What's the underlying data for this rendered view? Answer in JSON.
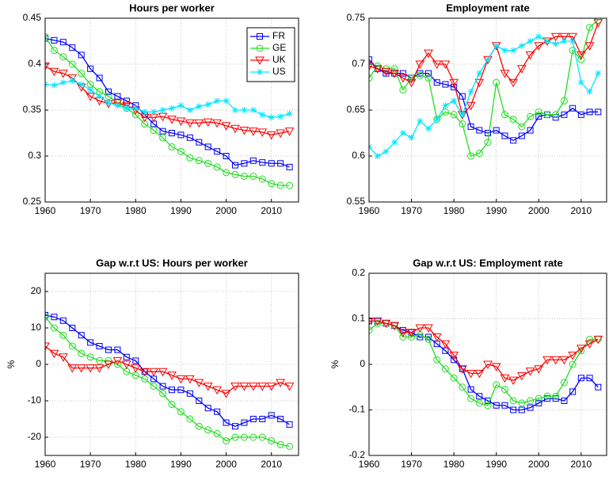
{
  "chart_data": [
    {
      "type": "line",
      "title": "Hours per worker",
      "legend": "upper right",
      "grid": true,
      "x": [
        1960,
        1962,
        1964,
        1966,
        1968,
        1970,
        1972,
        1974,
        1976,
        1978,
        1980,
        1982,
        1984,
        1986,
        1988,
        1990,
        1992,
        1994,
        1996,
        1998,
        2000,
        2002,
        2004,
        2006,
        2008,
        2010,
        2012,
        2014
      ],
      "xlim": [
        1960,
        2016
      ],
      "xticks": [
        1960,
        1970,
        1980,
        1990,
        2000,
        2010
      ],
      "ylim": [
        0.25,
        0.45
      ],
      "yticks": [
        0.25,
        0.3,
        0.35,
        0.4,
        0.45
      ],
      "series": [
        {
          "name": "FR",
          "color": "#0000ff",
          "marker": "square",
          "values": [
            0.428,
            0.426,
            0.424,
            0.418,
            0.41,
            0.395,
            0.385,
            0.37,
            0.365,
            0.36,
            0.355,
            0.345,
            0.335,
            0.327,
            0.325,
            0.323,
            0.32,
            0.315,
            0.31,
            0.305,
            0.3,
            0.29,
            0.292,
            0.295,
            0.293,
            0.292,
            0.292,
            0.288
          ]
        },
        {
          "name": "GE",
          "color": "#22dd22",
          "marker": "circle",
          "values": [
            0.43,
            0.415,
            0.408,
            0.4,
            0.39,
            0.378,
            0.37,
            0.365,
            0.358,
            0.352,
            0.345,
            0.335,
            0.328,
            0.32,
            0.31,
            0.305,
            0.298,
            0.295,
            0.292,
            0.288,
            0.282,
            0.28,
            0.278,
            0.278,
            0.275,
            0.27,
            0.268,
            0.268
          ]
        },
        {
          "name": "UK",
          "color": "#ff0000",
          "marker": "triangle-down",
          "values": [
            0.398,
            0.392,
            0.39,
            0.385,
            0.375,
            0.365,
            0.36,
            0.357,
            0.358,
            0.355,
            0.35,
            0.342,
            0.342,
            0.343,
            0.34,
            0.338,
            0.336,
            0.336,
            0.337,
            0.336,
            0.333,
            0.33,
            0.328,
            0.327,
            0.326,
            0.323,
            0.325,
            0.327
          ]
        },
        {
          "name": "US",
          "color": "#00e5ff",
          "marker": "asterisk",
          "values": [
            0.378,
            0.377,
            0.38,
            0.382,
            0.378,
            0.372,
            0.365,
            0.358,
            0.355,
            0.352,
            0.352,
            0.348,
            0.348,
            0.35,
            0.352,
            0.355,
            0.35,
            0.354,
            0.356,
            0.36,
            0.36,
            0.35,
            0.35,
            0.35,
            0.345,
            0.342,
            0.343,
            0.346
          ]
        }
      ]
    },
    {
      "type": "line",
      "title": "Employment rate",
      "grid": true,
      "x": [
        1960,
        1962,
        1964,
        1966,
        1968,
        1970,
        1972,
        1974,
        1976,
        1978,
        1980,
        1982,
        1984,
        1986,
        1988,
        1990,
        1992,
        1994,
        1996,
        1998,
        2000,
        2002,
        2004,
        2006,
        2008,
        2010,
        2012,
        2014
      ],
      "xlim": [
        1960,
        2016
      ],
      "xticks": [
        1960,
        1970,
        1980,
        1990,
        2000,
        2010
      ],
      "ylim": [
        0.55,
        0.75
      ],
      "yticks": [
        0.55,
        0.6,
        0.65,
        0.7,
        0.75
      ],
      "series": [
        {
          "color": "#0000ff",
          "marker": "square",
          "values": [
            0.705,
            0.695,
            0.69,
            0.69,
            0.69,
            0.685,
            0.69,
            0.69,
            0.68,
            0.678,
            0.675,
            0.665,
            0.632,
            0.628,
            0.625,
            0.628,
            0.622,
            0.617,
            0.622,
            0.628,
            0.643,
            0.645,
            0.642,
            0.645,
            0.652,
            0.645,
            0.648,
            0.648
          ]
        },
        {
          "color": "#22dd22",
          "marker": "circle",
          "values": [
            0.685,
            0.698,
            0.695,
            0.695,
            0.672,
            0.685,
            0.688,
            0.685,
            0.64,
            0.648,
            0.645,
            0.635,
            0.6,
            0.603,
            0.615,
            0.68,
            0.645,
            0.64,
            0.632,
            0.643,
            0.648,
            0.645,
            0.645,
            0.66,
            0.715,
            0.705,
            0.74,
            0.748
          ]
        },
        {
          "color": "#ff0000",
          "marker": "triangle-down",
          "values": [
            0.698,
            0.695,
            0.692,
            0.69,
            0.685,
            0.68,
            0.7,
            0.712,
            0.7,
            0.7,
            0.68,
            0.645,
            0.655,
            0.68,
            0.705,
            0.72,
            0.69,
            0.68,
            0.695,
            0.71,
            0.72,
            0.725,
            0.73,
            0.73,
            0.73,
            0.71,
            0.72,
            0.745
          ]
        },
        {
          "color": "#00e5ff",
          "marker": "asterisk",
          "values": [
            0.61,
            0.6,
            0.605,
            0.615,
            0.625,
            0.62,
            0.638,
            0.63,
            0.64,
            0.655,
            0.66,
            0.645,
            0.67,
            0.69,
            0.705,
            0.72,
            0.715,
            0.715,
            0.72,
            0.725,
            0.73,
            0.725,
            0.722,
            0.725,
            0.725,
            0.68,
            0.67,
            0.69
          ]
        }
      ]
    },
    {
      "type": "line",
      "title": "Gap w.r.t US: Hours per worker",
      "y_label": "%",
      "grid": true,
      "x": [
        1960,
        1962,
        1964,
        1966,
        1968,
        1970,
        1972,
        1974,
        1976,
        1978,
        1980,
        1982,
        1984,
        1986,
        1988,
        1990,
        1992,
        1994,
        1996,
        1998,
        2000,
        2002,
        2004,
        2006,
        2008,
        2010,
        2012,
        2014
      ],
      "xlim": [
        1960,
        2016
      ],
      "xticks": [
        1960,
        1970,
        1980,
        1990,
        2000,
        2010
      ],
      "ylim": [
        -25,
        25
      ],
      "yticks": [
        -20,
        -10,
        0,
        10,
        20
      ],
      "series": [
        {
          "color": "#0000ff",
          "marker": "square",
          "values": [
            13.5,
            13,
            12,
            10,
            8,
            6,
            5,
            4,
            4,
            2,
            1,
            -2,
            -4,
            -6,
            -7,
            -7,
            -8,
            -10,
            -12,
            -13,
            -16,
            -17,
            -16,
            -15,
            -15,
            -14,
            -15,
            -16.5
          ]
        },
        {
          "color": "#22dd22",
          "marker": "circle",
          "values": [
            13,
            10,
            8,
            5,
            3,
            2,
            1,
            1,
            0,
            -2,
            -3,
            -4,
            -6,
            -8,
            -11,
            -13,
            -15,
            -17,
            -18,
            -19,
            -21,
            -20,
            -20,
            -20,
            -20,
            -21,
            -22,
            -22.5
          ]
        },
        {
          "color": "#ff0000",
          "marker": "triangle-down",
          "values": [
            5,
            3,
            2,
            -1,
            -1,
            -1,
            -1,
            0,
            1,
            0,
            -1,
            -2,
            -2,
            -2,
            -3,
            -4,
            -4,
            -5,
            -6,
            -7,
            -8,
            -6,
            -6,
            -6,
            -6,
            -6,
            -5,
            -6
          ]
        }
      ]
    },
    {
      "type": "line",
      "title": "Gap w.r.t US: Employment rate",
      "y_label": "%",
      "grid": true,
      "x": [
        1960,
        1962,
        1964,
        1966,
        1968,
        1970,
        1972,
        1974,
        1976,
        1978,
        1980,
        1982,
        1984,
        1986,
        1988,
        1990,
        1992,
        1994,
        1996,
        1998,
        2000,
        2002,
        2004,
        2006,
        2008,
        2010,
        2012,
        2014
      ],
      "xlim": [
        1960,
        2016
      ],
      "xticks": [
        1960,
        1970,
        1980,
        1990,
        2000,
        2010
      ],
      "ylim": [
        -0.2,
        0.2
      ],
      "yticks": [
        -0.2,
        -0.1,
        0,
        0.1,
        0.2
      ],
      "series": [
        {
          "color": "#0000ff",
          "marker": "square",
          "values": [
            0.095,
            0.095,
            0.09,
            0.085,
            0.075,
            0.07,
            0.06,
            0.06,
            0.045,
            0.03,
            0.01,
            -0.01,
            -0.055,
            -0.07,
            -0.08,
            -0.09,
            -0.09,
            -0.1,
            -0.1,
            -0.095,
            -0.085,
            -0.075,
            -0.075,
            -0.08,
            -0.06,
            -0.03,
            -0.03,
            -0.05
          ]
        },
        {
          "color": "#22dd22",
          "marker": "circle",
          "values": [
            0.075,
            0.09,
            0.09,
            0.085,
            0.06,
            0.06,
            0.065,
            0.055,
            0.01,
            -0.01,
            -0.03,
            -0.05,
            -0.075,
            -0.085,
            -0.09,
            -0.045,
            -0.055,
            -0.08,
            -0.085,
            -0.08,
            -0.075,
            -0.07,
            -0.07,
            -0.04,
            0,
            0.03,
            0.055,
            0.055
          ]
        },
        {
          "color": "#ff0000",
          "marker": "triangle-down",
          "values": [
            0.095,
            0.095,
            0.09,
            0.085,
            0.07,
            0.07,
            0.08,
            0.08,
            0.06,
            0.045,
            0.02,
            -0.01,
            -0.02,
            -0.02,
            0,
            -0.005,
            -0.03,
            -0.035,
            -0.025,
            -0.015,
            -0.01,
            0.01,
            0.01,
            0.01,
            0.02,
            0.035,
            0.045,
            0.055
          ]
        }
      ]
    }
  ]
}
